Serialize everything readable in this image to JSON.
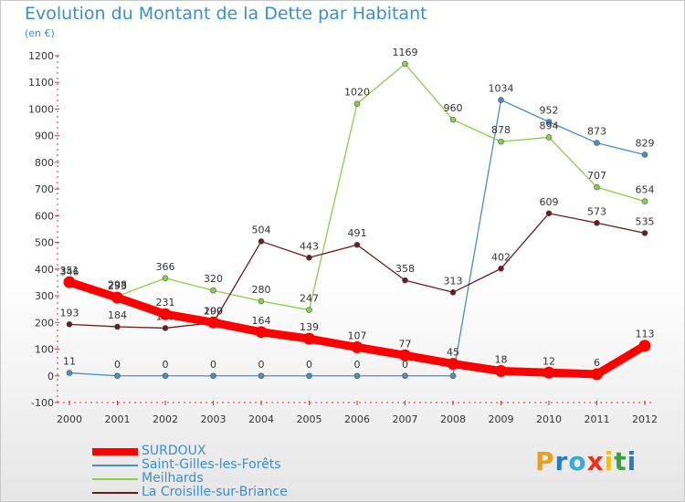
{
  "title": "Evolution du Montant de la Dette par Habitant",
  "subtitle": "(en €)",
  "logo": {
    "text": "Proxiti",
    "letter_colors": [
      "#e8a020",
      "#2a7cc0",
      "#3aa8d8",
      "#e83020",
      "#f0c020",
      "#3aa040",
      "#2a7cc0"
    ]
  },
  "chart_data": {
    "type": "line",
    "title": "Evolution du Montant de la Dette par Habitant",
    "ylabel": "(en €)",
    "xlabel": "",
    "x": [
      "2000",
      "2001",
      "2002",
      "2003",
      "2004",
      "2005",
      "2006",
      "2007",
      "2008",
      "2009",
      "2010",
      "2011",
      "2012"
    ],
    "ylim": [
      -100,
      1200
    ],
    "yticks": [
      -100,
      0,
      100,
      200,
      300,
      400,
      500,
      600,
      700,
      800,
      900,
      1000,
      1100,
      1200
    ],
    "grid": false,
    "legend": "bottom-left",
    "series": [
      {
        "name": "Saint-Gilles-les-Forêts",
        "color": "#4a8ec8",
        "values": [
          11,
          0,
          0,
          0,
          0,
          0,
          0,
          0,
          0,
          1034,
          952,
          873,
          829
        ],
        "labels": [
          "11",
          "0",
          "0",
          "0",
          "0",
          "0",
          "0",
          "0",
          "0",
          "1034",
          "952",
          "873",
          "829"
        ]
      },
      {
        "name": "Meilhards",
        "color": "#88d048",
        "values": [
          346,
          298,
          366,
          320,
          280,
          247,
          1020,
          1169,
          960,
          878,
          894,
          707,
          654
        ],
        "labels": [
          "346",
          "298",
          "366",
          "320",
          "280",
          "247",
          "1020",
          "1169",
          "960",
          "878",
          "894",
          "707",
          "654"
        ]
      },
      {
        "name": "La Croisille-sur-Briance",
        "color": "#6a1c1c",
        "values": [
          193,
          184,
          179,
          199,
          504,
          443,
          491,
          358,
          313,
          402,
          609,
          573,
          535
        ],
        "labels": [
          "193",
          "184",
          "179",
          "199",
          "504",
          "443",
          "491",
          "358",
          "313",
          "402",
          "609",
          "573",
          "535"
        ]
      },
      {
        "name": "SURDOUX",
        "color": "#ff0000",
        "values": [
          351,
          293,
          231,
          200,
          164,
          139,
          107,
          77,
          45,
          18,
          12,
          6,
          113
        ],
        "labels": [
          "351",
          "293",
          "231",
          "200",
          "164",
          "139",
          "107",
          "77",
          "45",
          "18",
          "12",
          "6",
          "113"
        ]
      }
    ]
  }
}
